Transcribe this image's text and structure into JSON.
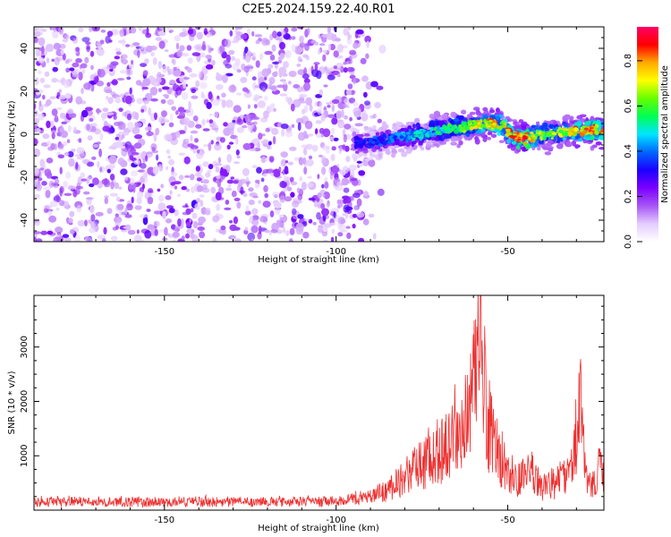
{
  "figure_title": "C2E5.2024.159.22.40.R01",
  "chart_data": [
    {
      "type": "heatmap",
      "title": "C2E5.2024.159.22.40.R01",
      "xlabel": "Height of straight line (km)",
      "ylabel": "Frequency (Hz)",
      "xlim": [
        -188,
        -22
      ],
      "ylim": [
        -50,
        50
      ],
      "xticks": [
        -150,
        -100,
        -50
      ],
      "yticks": [
        -40,
        -20,
        0,
        20,
        40
      ],
      "colorbar": {
        "label": "Normalized spectral amplitude",
        "range": [
          0.0,
          0.95
        ],
        "ticks": [
          0.0,
          0.2,
          0.4,
          0.6,
          0.8
        ],
        "colormap": [
          "#ffffff",
          "#e4ccff",
          "#a855f7",
          "#7b00ff",
          "#1a00ff",
          "#0066ff",
          "#00e5ff",
          "#00ff55",
          "#66ff00",
          "#ffff00",
          "#ffaa00",
          "#ff0000",
          "#ff0066"
        ]
      },
      "noise_region": {
        "x": [
          -188,
          -85
        ],
        "amplitude": 0.1
      },
      "signal_ridge": {
        "x": [
          -95,
          -90,
          -85,
          -80,
          -75,
          -70,
          -65,
          -60,
          -55,
          -52,
          -48,
          -45,
          -42,
          -38,
          -35,
          -30,
          -25,
          -22
        ],
        "frequency": [
          -4,
          -4,
          -2,
          -1,
          0,
          2,
          3,
          4,
          5,
          4,
          -1,
          -2,
          -1,
          0,
          1,
          1,
          2,
          2
        ],
        "amplitude": [
          0.3,
          0.35,
          0.4,
          0.45,
          0.5,
          0.55,
          0.6,
          0.7,
          0.8,
          0.75,
          0.85,
          0.95,
          0.7,
          0.65,
          0.7,
          0.8,
          0.85,
          0.8
        ]
      }
    },
    {
      "type": "line",
      "xlabel": "Height of straight line (km)",
      "ylabel": "SNR (10 * v/v)",
      "xlim": [
        -188,
        -22
      ],
      "ylim": [
        0,
        3950
      ],
      "xticks": [
        -150,
        -100,
        -50
      ],
      "yticks": [
        1000,
        2000,
        3000
      ],
      "color": "#ee3030",
      "series": [
        {
          "x": [
            -188,
            -180,
            -170,
            -160,
            -150,
            -140,
            -130,
            -120,
            -110,
            -100,
            -95,
            -90,
            -85,
            -80,
            -78,
            -75,
            -72,
            -70,
            -68,
            -66,
            -64,
            -62,
            -60,
            -59,
            -58,
            -57,
            -56,
            -55,
            -53,
            -51,
            -50,
            -49,
            -47,
            -45,
            -43,
            -41,
            -40,
            -38,
            -36,
            -34,
            -32,
            -31,
            -30,
            -29,
            -28,
            -27,
            -26,
            -25,
            -24,
            -23,
            -22
          ],
          "y": [
            180,
            190,
            180,
            185,
            180,
            190,
            185,
            190,
            180,
            220,
            260,
            320,
            450,
            700,
            850,
            1050,
            1250,
            1350,
            1450,
            1700,
            2000,
            2300,
            2600,
            3000,
            3500,
            2800,
            2200,
            1700,
            1300,
            1100,
            900,
            800,
            700,
            750,
            850,
            700,
            550,
            550,
            650,
            700,
            800,
            1200,
            1900,
            2400,
            1600,
            700,
            500,
            600,
            800,
            1000,
            900
          ]
        }
      ]
    }
  ]
}
